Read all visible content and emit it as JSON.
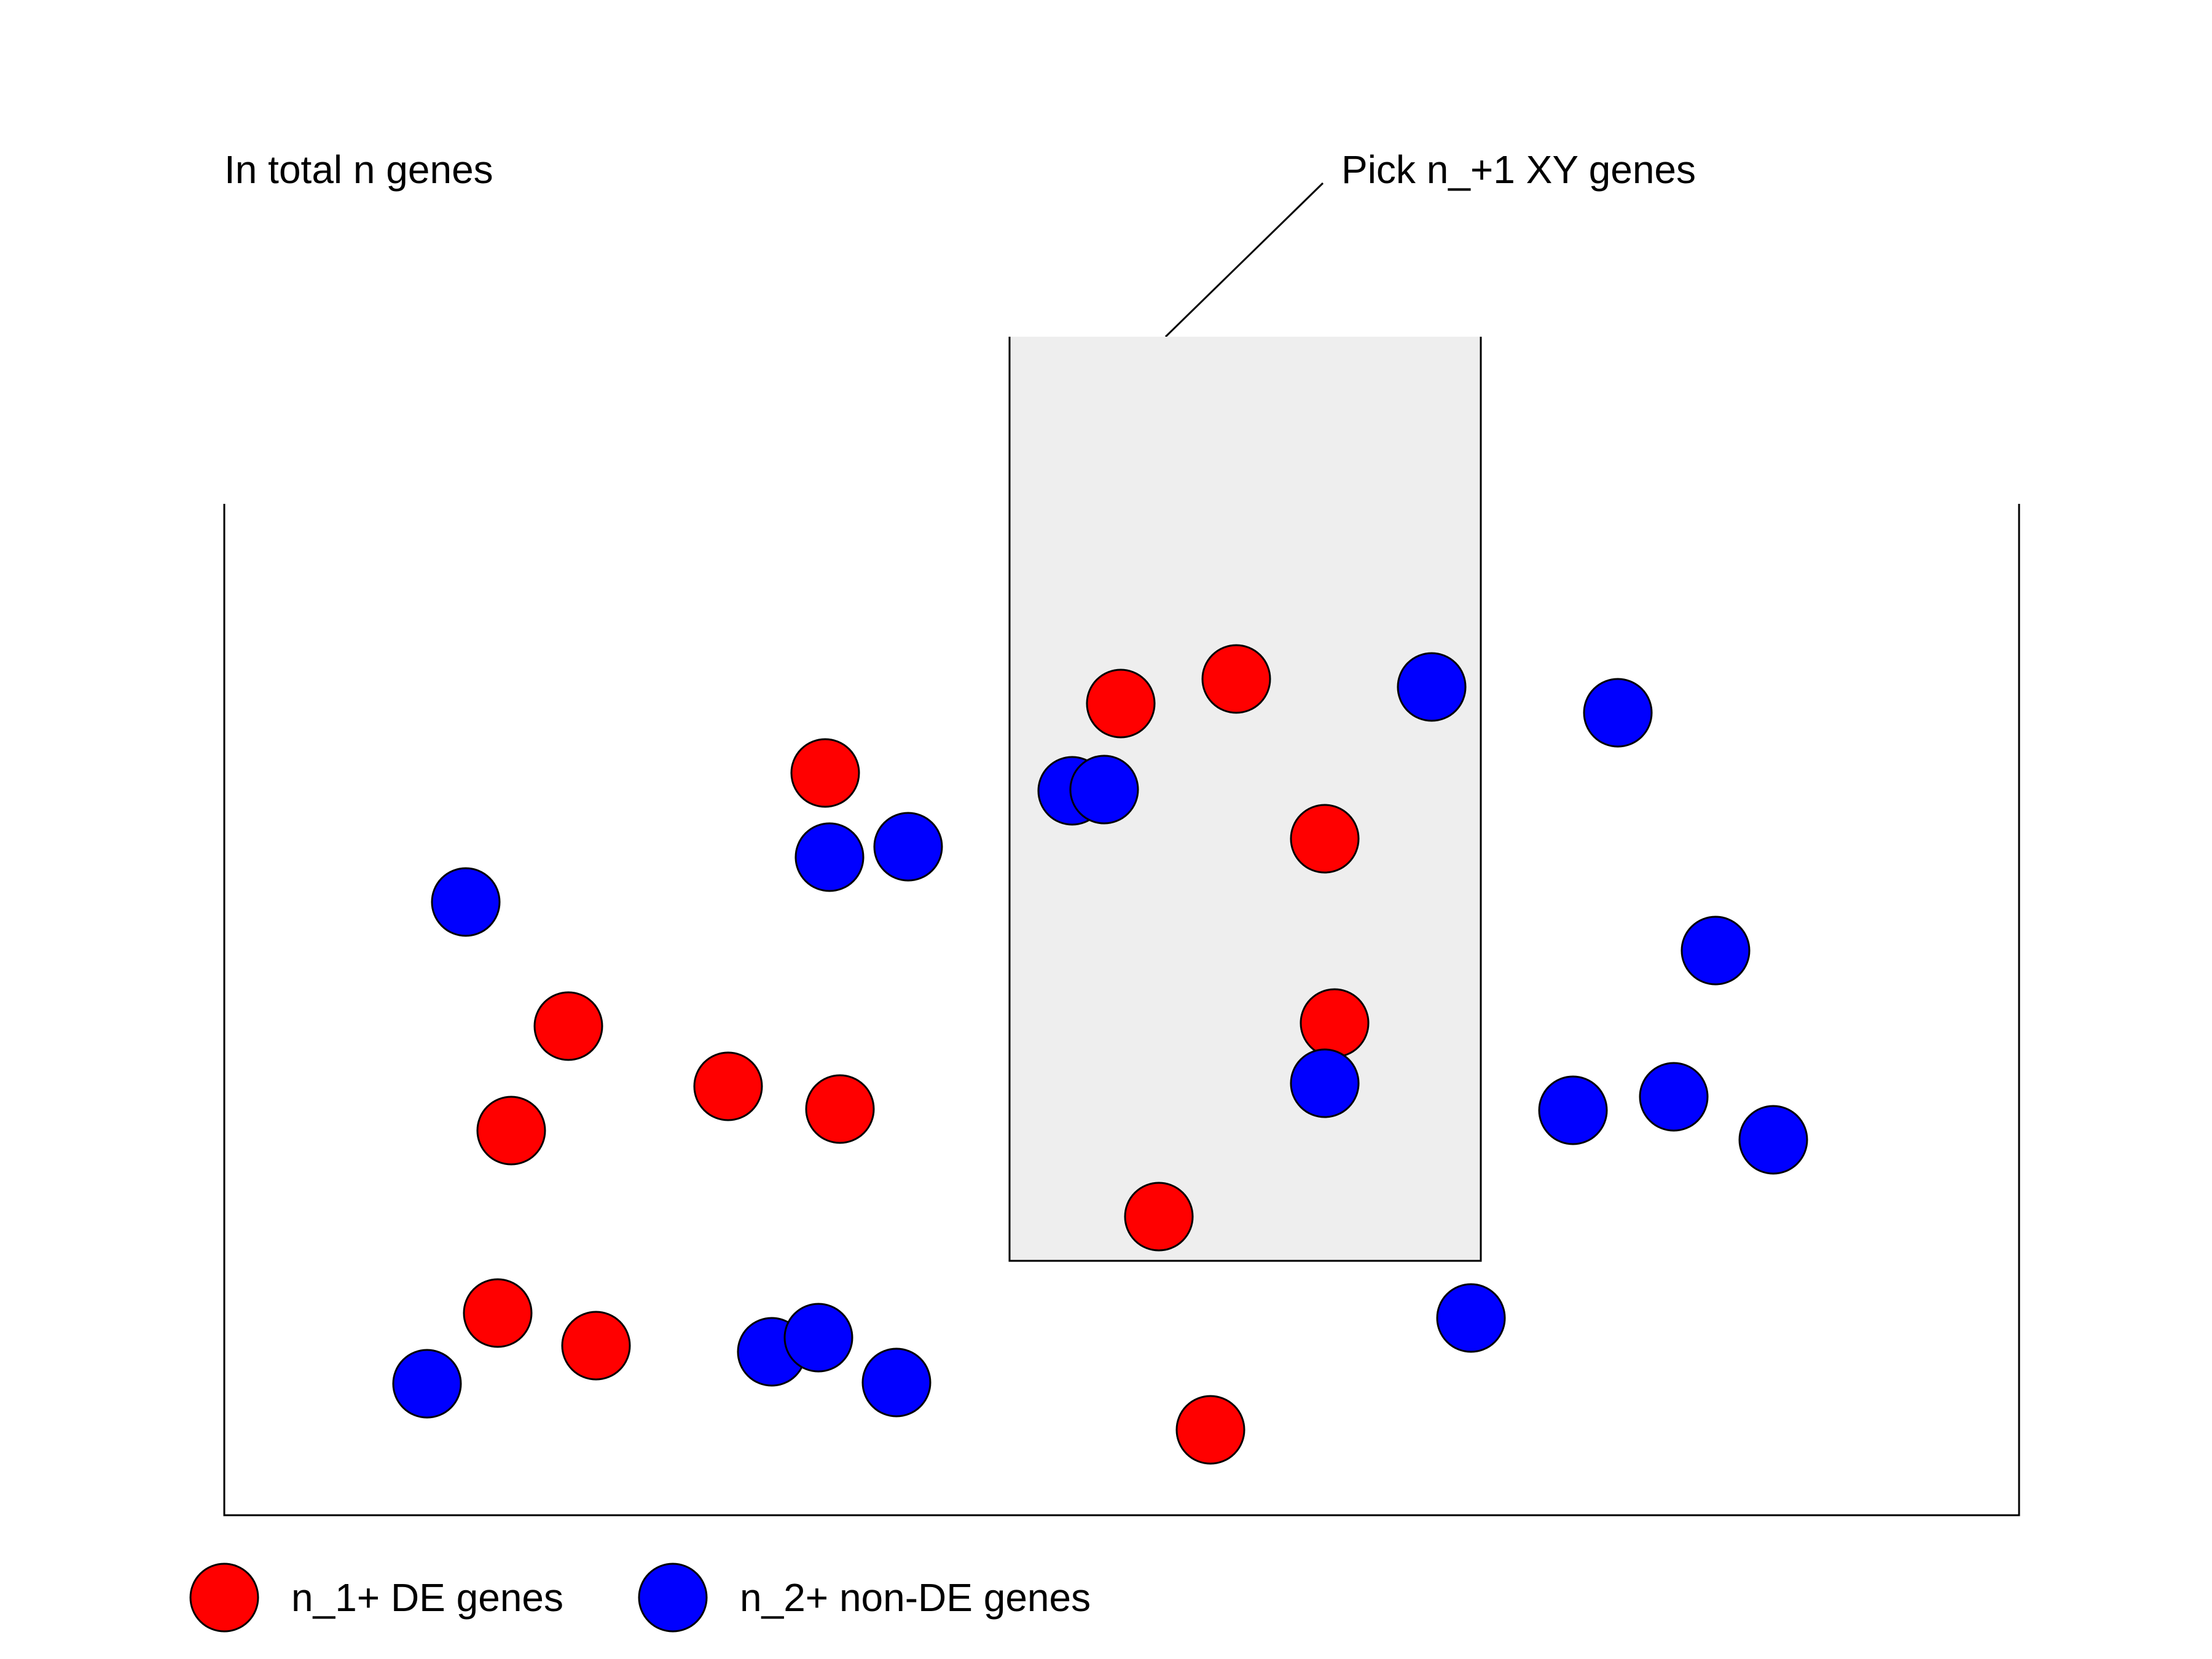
{
  "labels": {
    "total": "In total n genes",
    "pick": "Pick n_+1 XY genes"
  },
  "legend": {
    "de": "n_1+ DE genes",
    "non_de": "n_2+ non-DE genes"
  },
  "colors": {
    "de": "#ff0000",
    "non_de": "#0000ff",
    "selection_fill": "#eeeeee",
    "stroke": "#000000"
  }
}
